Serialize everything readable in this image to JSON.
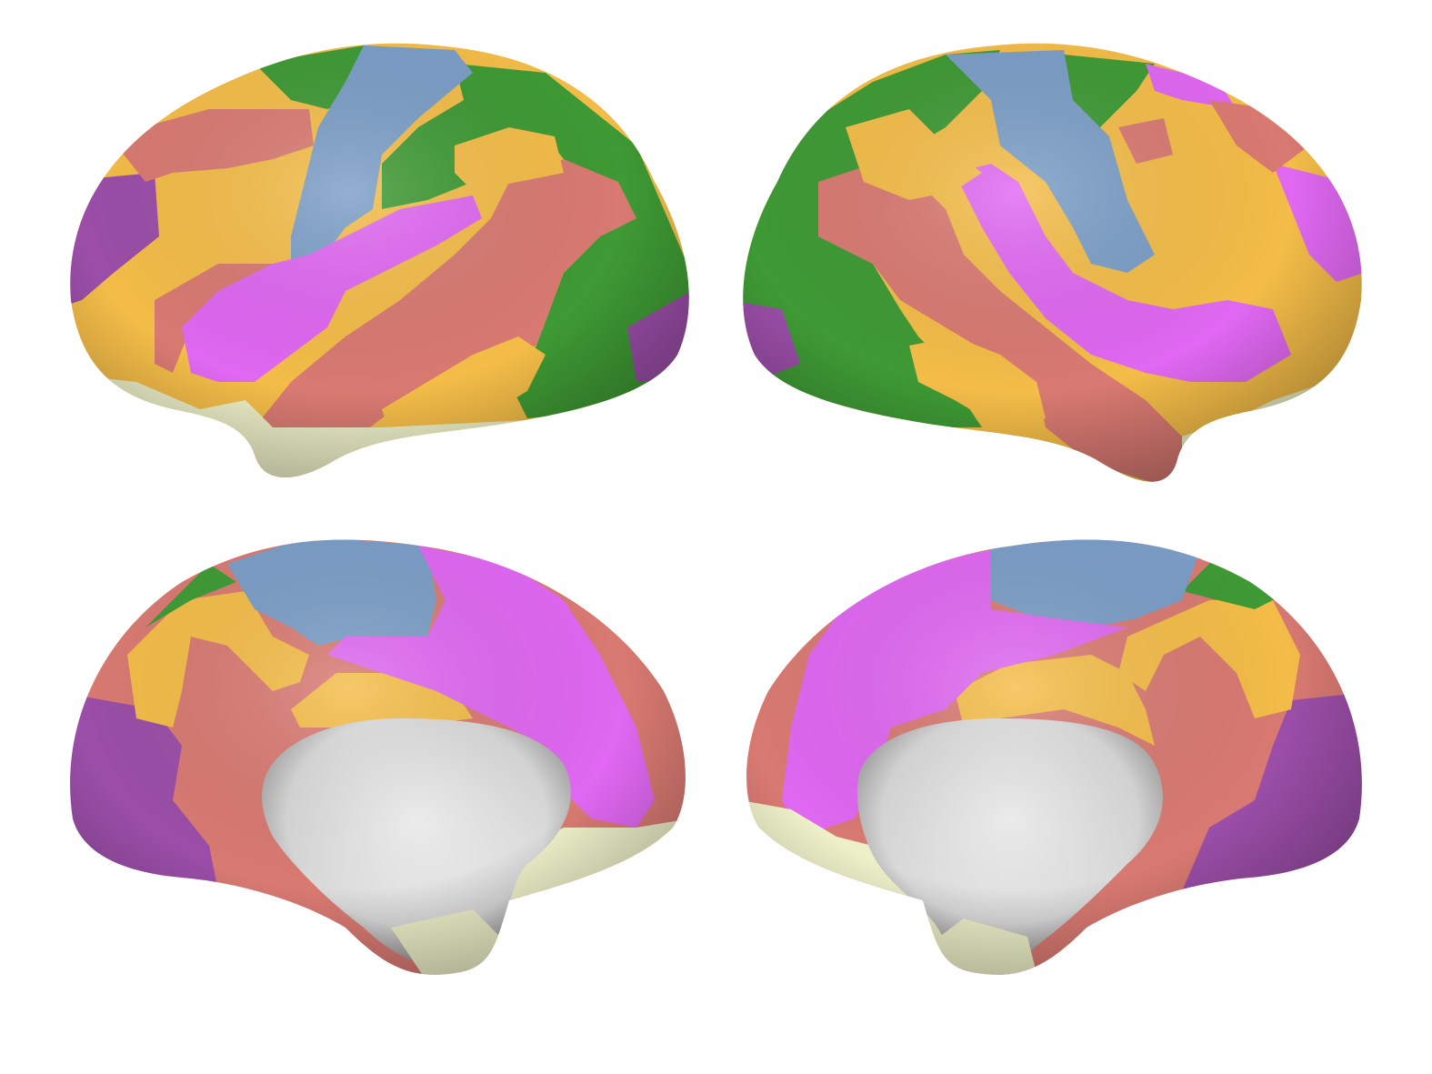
{
  "figure": {
    "views": [
      {
        "name": "left-hemisphere-lateral"
      },
      {
        "name": "right-hemisphere-lateral"
      },
      {
        "name": "left-hemisphere-medial"
      },
      {
        "name": "right-hemisphere-medial"
      }
    ]
  },
  "palette": {
    "visual": "#9b4ea8",
    "somatomotor": "#7b9ec7",
    "dorsal_attention": "#3e9a34",
    "ventral_attention": "#e068f2",
    "limbic": "#edf0c8",
    "frontoparietal": "#f4bd48",
    "default_mode": "#d97a72",
    "medial_wall": "#e2e2e2",
    "background": "#ffffff"
  }
}
